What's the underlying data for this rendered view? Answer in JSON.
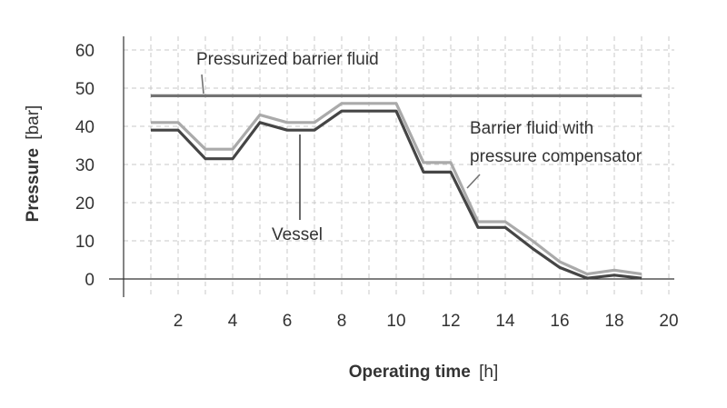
{
  "chart_data": {
    "type": "line",
    "xlabel": {
      "bold": "Operating time",
      "unit": "[h]"
    },
    "ylabel": {
      "bold": "Pressure",
      "unit": "[bar]"
    },
    "xlim": [
      0,
      20
    ],
    "ylim": [
      0,
      60
    ],
    "xticks": [
      2,
      4,
      6,
      8,
      10,
      12,
      14,
      16,
      18,
      20
    ],
    "yticks": [
      0,
      10,
      20,
      30,
      40,
      50,
      60
    ],
    "grid": true,
    "colors": {
      "pressurized": "#737373",
      "compensator": "#aaaaaa",
      "vessel": "#454545",
      "grid": "#c8c8c8",
      "axis": "#333333"
    },
    "series": [
      {
        "name": "Pressurized barrier fluid",
        "x": [
          1,
          19
        ],
        "y": [
          48,
          48
        ]
      },
      {
        "name": "Barrier fluid with pressure compensator",
        "x": [
          1,
          2,
          3,
          4,
          5,
          6,
          7,
          8,
          9,
          10,
          11,
          12,
          13,
          14,
          15,
          16,
          17,
          18,
          19
        ],
        "y": [
          41,
          41,
          34,
          34,
          43,
          41,
          41,
          46,
          46,
          46,
          30.5,
          30.5,
          15,
          15,
          10,
          4.5,
          1.3,
          2.3,
          1.3
        ]
      },
      {
        "name": "Vessel",
        "x": [
          1,
          2,
          3,
          4,
          5,
          6,
          7,
          8,
          9,
          10,
          11,
          12,
          13,
          14,
          15,
          16,
          17,
          18,
          19
        ],
        "y": [
          39,
          39,
          31.5,
          31.5,
          41,
          39,
          39,
          44,
          44,
          44,
          28,
          28,
          13.5,
          13.5,
          8,
          3,
          0.2,
          1,
          0.2
        ]
      }
    ],
    "annotations": {
      "pressurized": [
        "Pressurized barrier fluid"
      ],
      "compensator": [
        "Barrier fluid with",
        "pressure compensator"
      ],
      "vessel": [
        "Vessel"
      ]
    }
  }
}
